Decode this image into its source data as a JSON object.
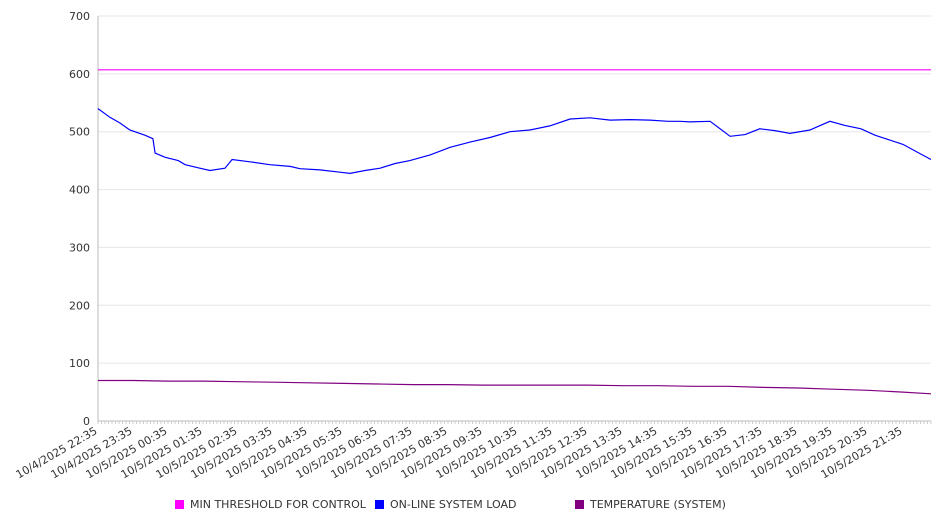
{
  "chart_data": {
    "type": "line",
    "title": "",
    "xlabel": "",
    "ylabel": "",
    "ylim": [
      0,
      700
    ],
    "yticks": [
      "0",
      "100",
      "200",
      "300",
      "400",
      "500",
      "600",
      "700"
    ],
    "xtick_labels": [
      "10/4/2025 22:35",
      "10/4/2025 23:35",
      "10/5/2025 00:35",
      "10/5/2025 01:35",
      "10/5/2025 02:35",
      "10/5/2025 03:35",
      "10/5/2025 04:35",
      "10/5/2025 05:35",
      "10/5/2025 06:35",
      "10/5/2025 07:35",
      "10/5/2025 08:35",
      "10/5/2025 09:35",
      "10/5/2025 10:35",
      "10/5/2025 11:35",
      "10/5/2025 12:35",
      "10/5/2025 13:35",
      "10/5/2025 14:35",
      "10/5/2025 15:35",
      "10/5/2025 16:35",
      "10/5/2025 17:35",
      "10/5/2025 18:35",
      "10/5/2025 19:35",
      "10/5/2025 20:35",
      "10/5/2025 21:35"
    ],
    "x_unit": "hours since 10/4/2025 22:35",
    "xlim": [
      0,
      23.8
    ],
    "grid": true,
    "legend_position": "bottom",
    "series": [
      {
        "name": "MIN THRESHOLD FOR CONTROL",
        "color": "#ff00ff",
        "x": [
          0,
          23.8
        ],
        "values": [
          607,
          607
        ]
      },
      {
        "name": "ON-LINE SYSTEM LOAD",
        "color": "#0000ff",
        "x": [
          0,
          0.34,
          0.63,
          0.91,
          1.34,
          1.57,
          1.63,
          1.91,
          2.29,
          2.49,
          2.91,
          3.2,
          3.63,
          3.83,
          4.34,
          4.91,
          5.49,
          5.77,
          6.34,
          6.91,
          7.2,
          7.63,
          8.06,
          8.49,
          8.91,
          9.49,
          10.06,
          10.63,
          11.2,
          11.77,
          12.34,
          12.91,
          13.49,
          14.06,
          14.63,
          15.2,
          15.77,
          16.29,
          16.4,
          16.63,
          16.91,
          17.49,
          18.06,
          18.49,
          18.91,
          19.34,
          19.77,
          20.34,
          20.91,
          21.34,
          21.8,
          22.2,
          22.6,
          23.0,
          23.4,
          23.8
        ],
        "values": [
          540,
          525,
          515,
          503,
          494,
          488,
          463,
          456,
          450,
          443,
          437,
          433,
          437,
          452,
          448,
          443,
          440,
          436,
          434,
          430,
          428,
          433,
          437,
          445,
          450,
          460,
          473,
          482,
          490,
          500,
          503,
          510,
          522,
          524,
          520,
          521,
          520,
          518,
          518,
          518,
          517,
          518,
          492,
          495,
          505,
          502,
          497,
          503,
          518,
          511,
          505,
          494,
          486,
          478,
          465,
          452
        ]
      },
      {
        "name": "TEMPERATURE (SYSTEM)",
        "color": "#800080",
        "x": [
          0,
          1,
          2,
          3,
          4,
          5,
          6,
          7,
          8,
          9,
          10,
          11,
          12,
          13,
          14,
          15,
          16,
          17,
          18,
          19,
          20,
          21,
          22,
          23,
          23.8
        ],
        "values": [
          70,
          70,
          69,
          69,
          68,
          67,
          66,
          65,
          64,
          63,
          63,
          62,
          62,
          62,
          62,
          61,
          61,
          60,
          60,
          58,
          57,
          55,
          53,
          50,
          47
        ]
      }
    ]
  }
}
